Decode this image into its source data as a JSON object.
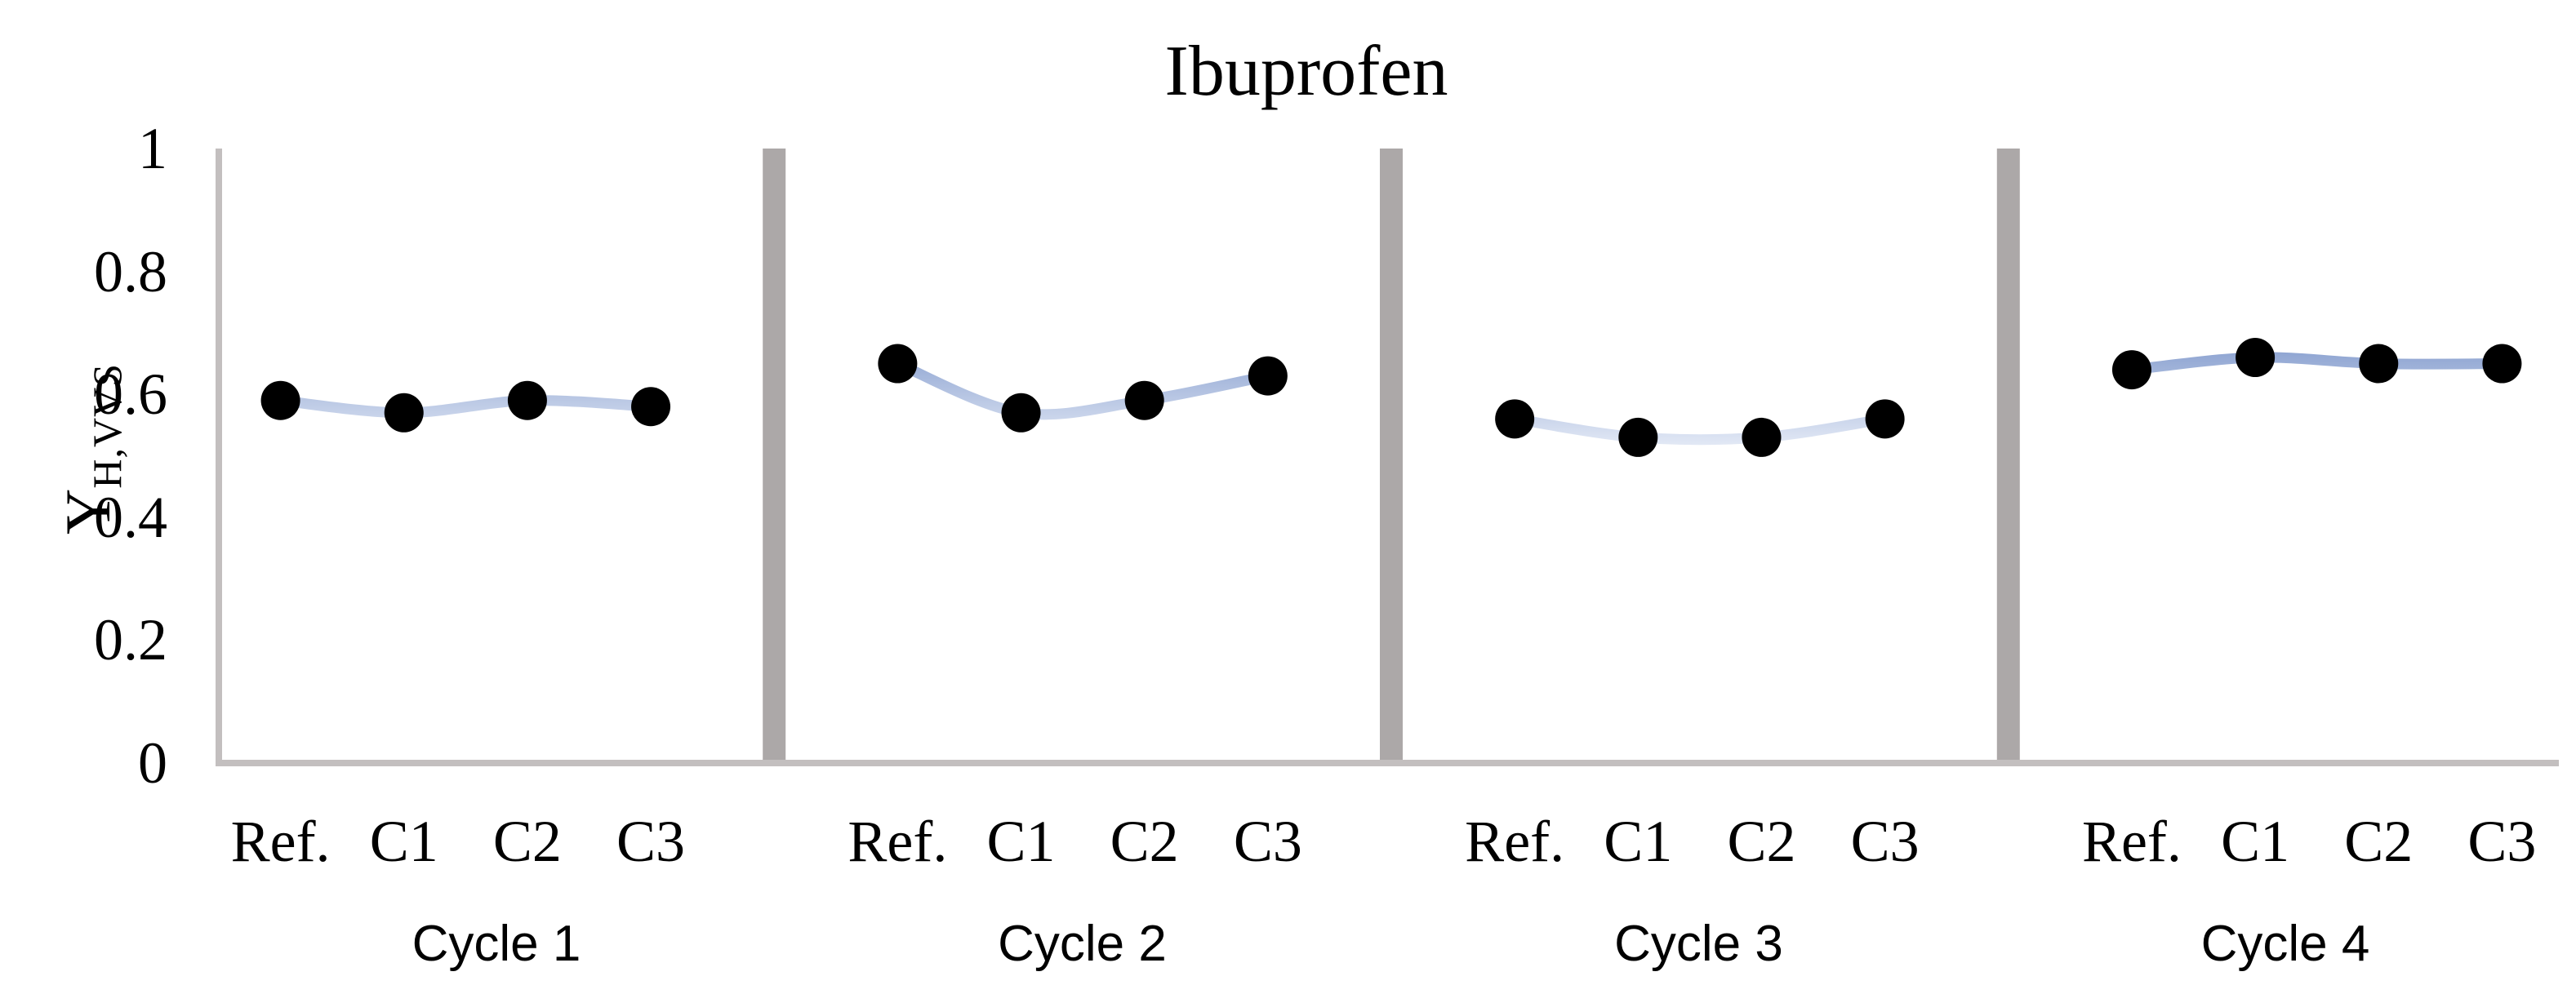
{
  "title": "Ibuprofen",
  "y_axis": {
    "label_main": "Y",
    "label_sub": "H,VVS",
    "ticks": [
      {
        "label": "1",
        "value": 1.0
      },
      {
        "label": "0.8",
        "value": 0.8
      },
      {
        "label": "0.6",
        "value": 0.6
      },
      {
        "label": "0.4",
        "value": 0.4
      },
      {
        "label": "0.2",
        "value": 0.2
      },
      {
        "label": "0",
        "value": 0.0
      }
    ]
  },
  "x_axis": {
    "categories": [
      "Ref.",
      "C1",
      "C2",
      "C3"
    ]
  },
  "panels": [
    {
      "group_label": "Cycle 1",
      "values": [
        0.59,
        0.57,
        0.59,
        0.58
      ]
    },
    {
      "group_label": "Cycle 2",
      "values": [
        0.65,
        0.57,
        0.59,
        0.63
      ]
    },
    {
      "group_label": "Cycle 3",
      "values": [
        0.56,
        0.53,
        0.53,
        0.56
      ]
    },
    {
      "group_label": "Cycle 4",
      "values": [
        0.64,
        0.66,
        0.65,
        0.65
      ]
    }
  ],
  "colors": {
    "marker": "#000000",
    "line_gradient_top": "#8fa5d2",
    "line_gradient_bottom": "#e9eef8",
    "axis_line": "#c3bfbf",
    "divider": "#aca8a8",
    "text": "#000000",
    "background": "#ffffff"
  },
  "chart_data": {
    "type": "line",
    "title": "Ibuprofen",
    "ylabel": "Y H,VVS",
    "xlabel": "",
    "ylim": [
      0,
      1
    ],
    "yticks": [
      0,
      0.2,
      0.4,
      0.6,
      0.8,
      1
    ],
    "categories": [
      "Ref.",
      "C1",
      "C2",
      "C3"
    ],
    "series": [
      {
        "name": "Cycle 1",
        "values": [
          0.59,
          0.57,
          0.59,
          0.58
        ]
      },
      {
        "name": "Cycle 2",
        "values": [
          0.65,
          0.57,
          0.59,
          0.63
        ]
      },
      {
        "name": "Cycle 3",
        "values": [
          0.56,
          0.53,
          0.53,
          0.56
        ]
      },
      {
        "name": "Cycle 4",
        "values": [
          0.64,
          0.66,
          0.65,
          0.65
        ]
      }
    ],
    "legend": "none",
    "grid": false,
    "marker": "filled black circle",
    "line_style": "smoothed, light blue vertical gradient",
    "layout_note": "four panels in one plot area separated by vertical gray divider bars; each panel has categories Ref., C1, C2, C3 and a group label Cycle N below"
  }
}
